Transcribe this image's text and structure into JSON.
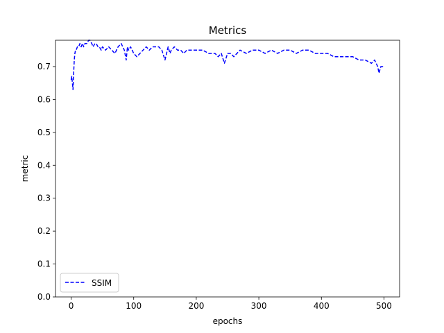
{
  "chart_data": {
    "type": "line",
    "title": "Metrics",
    "xlabel": "epochs",
    "ylabel": "metric",
    "xlim": [
      -25,
      525
    ],
    "ylim": [
      0.0,
      0.78
    ],
    "xticks": [
      0,
      100,
      200,
      300,
      400,
      500
    ],
    "yticks": [
      0.0,
      0.1,
      0.2,
      0.3,
      0.4,
      0.5,
      0.6,
      0.7
    ],
    "grid": false,
    "legend_position": "lower-left",
    "series": [
      {
        "name": "SSIM",
        "color": "#0000ff",
        "linestyle": "dashed",
        "x": [
          0,
          1,
          2,
          3,
          4,
          5,
          6,
          7,
          8,
          10,
          12,
          14,
          16,
          18,
          20,
          22,
          25,
          28,
          30,
          33,
          35,
          38,
          40,
          43,
          45,
          48,
          50,
          55,
          60,
          65,
          70,
          75,
          80,
          85,
          88,
          90,
          92,
          95,
          100,
          105,
          110,
          115,
          120,
          125,
          130,
          135,
          140,
          145,
          150,
          155,
          158,
          160,
          165,
          170,
          175,
          180,
          185,
          190,
          200,
          210,
          220,
          230,
          235,
          240,
          245,
          250,
          255,
          260,
          270,
          280,
          290,
          300,
          310,
          320,
          330,
          340,
          350,
          360,
          370,
          380,
          390,
          400,
          410,
          420,
          430,
          440,
          450,
          460,
          470,
          480,
          485,
          490,
          492,
          495,
          500
        ],
        "values": [
          0.66,
          0.67,
          0.65,
          0.63,
          0.68,
          0.72,
          0.74,
          0.75,
          0.75,
          0.76,
          0.76,
          0.77,
          0.76,
          0.77,
          0.76,
          0.77,
          0.77,
          0.78,
          0.78,
          0.77,
          0.76,
          0.77,
          0.77,
          0.76,
          0.76,
          0.75,
          0.76,
          0.75,
          0.76,
          0.75,
          0.74,
          0.76,
          0.77,
          0.75,
          0.72,
          0.76,
          0.75,
          0.76,
          0.74,
          0.73,
          0.74,
          0.75,
          0.76,
          0.75,
          0.76,
          0.76,
          0.76,
          0.75,
          0.72,
          0.76,
          0.74,
          0.75,
          0.76,
          0.75,
          0.75,
          0.74,
          0.75,
          0.75,
          0.75,
          0.75,
          0.74,
          0.74,
          0.73,
          0.74,
          0.71,
          0.74,
          0.74,
          0.73,
          0.75,
          0.74,
          0.75,
          0.75,
          0.74,
          0.75,
          0.74,
          0.75,
          0.75,
          0.74,
          0.75,
          0.75,
          0.74,
          0.74,
          0.74,
          0.73,
          0.73,
          0.73,
          0.73,
          0.72,
          0.72,
          0.71,
          0.72,
          0.7,
          0.68,
          0.7,
          0.7
        ]
      }
    ]
  }
}
